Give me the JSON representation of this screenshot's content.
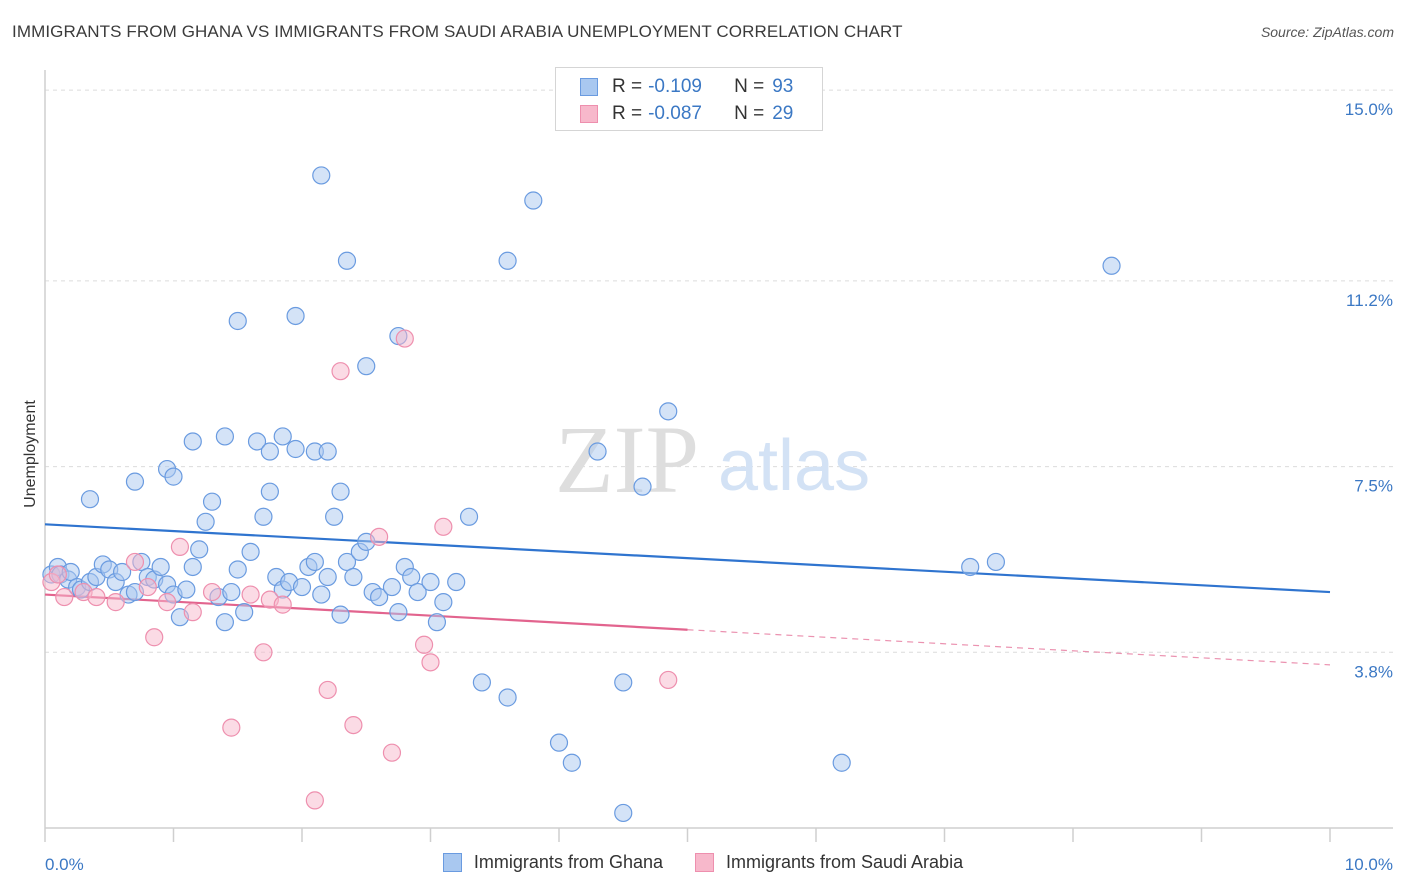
{
  "title": "IMMIGRANTS FROM GHANA VS IMMIGRANTS FROM SAUDI ARABIA UNEMPLOYMENT CORRELATION CHART",
  "source": "Source: ZipAtlas.com",
  "watermark": {
    "zip": "ZIP",
    "atlas": "atlas"
  },
  "legend": {
    "rows": [
      {
        "r_label": "R =",
        "r_value": "-0.109",
        "n_label": "N =",
        "n_value": "93"
      },
      {
        "r_label": "R =",
        "r_value": "-0.087",
        "n_label": "N =",
        "n_value": "29"
      }
    ]
  },
  "colors": {
    "ghana_fill": "#a9c8f0",
    "ghana_stroke": "#6a9be0",
    "ghana_line": "#2f74cf",
    "saudi_fill": "#f7b8cb",
    "saudi_stroke": "#ee8fae",
    "saudi_line": "#e2648e",
    "grid": "#dcdcdc",
    "tick_label": "#3b78c4"
  },
  "chart_data": {
    "type": "scatter",
    "title": "IMMIGRANTS FROM GHANA VS IMMIGRANTS FROM SAUDI ARABIA UNEMPLOYMENT CORRELATION CHART",
    "xlabel": "",
    "ylabel": "Unemployment",
    "xlim": [
      0,
      10
    ],
    "ylim": [
      0.3,
      15.4
    ],
    "x_tick_labels": [
      "0.0%",
      "10.0%"
    ],
    "y_ticks": [
      {
        "value": 3.8,
        "label": "3.8%"
      },
      {
        "value": 7.5,
        "label": "7.5%"
      },
      {
        "value": 11.2,
        "label": "11.2%"
      },
      {
        "value": 15.0,
        "label": "15.0%"
      }
    ],
    "grid": true,
    "legend_position": "top-center",
    "series": [
      {
        "name": "Immigrants from Ghana",
        "r": -0.109,
        "n": 93,
        "trend": {
          "x0": 0,
          "y0": 6.35,
          "x1": 10,
          "y1": 5.0
        },
        "points": [
          [
            0.05,
            5.35
          ],
          [
            0.1,
            5.5
          ],
          [
            0.12,
            5.35
          ],
          [
            0.18,
            5.25
          ],
          [
            0.2,
            5.4
          ],
          [
            0.25,
            5.1
          ],
          [
            0.28,
            5.05
          ],
          [
            0.35,
            5.2
          ],
          [
            0.4,
            5.3
          ],
          [
            0.45,
            5.55
          ],
          [
            0.5,
            5.45
          ],
          [
            0.55,
            5.2
          ],
          [
            0.6,
            5.4
          ],
          [
            0.65,
            4.95
          ],
          [
            0.7,
            5.0
          ],
          [
            0.75,
            5.6
          ],
          [
            0.8,
            5.3
          ],
          [
            0.85,
            5.25
          ],
          [
            0.9,
            5.5
          ],
          [
            0.95,
            5.15
          ],
          [
            1.0,
            4.95
          ],
          [
            1.05,
            4.5
          ],
          [
            1.1,
            5.05
          ],
          [
            1.15,
            5.5
          ],
          [
            1.2,
            5.85
          ],
          [
            1.25,
            6.4
          ],
          [
            1.3,
            6.8
          ],
          [
            1.35,
            4.9
          ],
          [
            1.4,
            4.4
          ],
          [
            1.45,
            5.0
          ],
          [
            1.5,
            5.45
          ],
          [
            1.55,
            4.6
          ],
          [
            1.6,
            5.8
          ],
          [
            1.7,
            6.5
          ],
          [
            1.75,
            7.0
          ],
          [
            1.8,
            5.3
          ],
          [
            1.85,
            5.05
          ],
          [
            1.9,
            5.2
          ],
          [
            2.0,
            5.1
          ],
          [
            2.05,
            5.5
          ],
          [
            2.1,
            5.6
          ],
          [
            2.15,
            4.95
          ],
          [
            2.2,
            5.3
          ],
          [
            2.3,
            4.55
          ],
          [
            2.35,
            5.6
          ],
          [
            2.4,
            5.3
          ],
          [
            2.45,
            5.8
          ],
          [
            2.5,
            6.0
          ],
          [
            2.55,
            5.0
          ],
          [
            2.6,
            4.9
          ],
          [
            2.7,
            5.1
          ],
          [
            2.75,
            4.6
          ],
          [
            2.8,
            5.5
          ],
          [
            2.85,
            5.3
          ],
          [
            2.9,
            5.0
          ],
          [
            3.0,
            5.2
          ],
          [
            3.05,
            4.4
          ],
          [
            3.1,
            4.8
          ],
          [
            3.2,
            5.2
          ],
          [
            3.3,
            6.5
          ],
          [
            0.35,
            6.85
          ],
          [
            0.7,
            7.2
          ],
          [
            0.95,
            7.45
          ],
          [
            1.0,
            7.3
          ],
          [
            1.15,
            8.0
          ],
          [
            1.4,
            8.1
          ],
          [
            1.65,
            8.0
          ],
          [
            1.75,
            7.8
          ],
          [
            1.85,
            8.1
          ],
          [
            1.95,
            7.85
          ],
          [
            2.1,
            7.8
          ],
          [
            2.2,
            7.8
          ],
          [
            2.25,
            6.5
          ],
          [
            2.3,
            7.0
          ],
          [
            2.5,
            9.5
          ],
          [
            1.5,
            10.4
          ],
          [
            1.95,
            10.5
          ],
          [
            2.15,
            13.3
          ],
          [
            2.35,
            11.6
          ],
          [
            2.75,
            10.1
          ],
          [
            3.6,
            11.6
          ],
          [
            3.8,
            12.8
          ],
          [
            4.3,
            7.8
          ],
          [
            4.65,
            7.1
          ],
          [
            4.85,
            8.6
          ],
          [
            3.4,
            3.2
          ],
          [
            3.6,
            2.9
          ],
          [
            4.0,
            2.0
          ],
          [
            4.1,
            1.6
          ],
          [
            4.5,
            3.2
          ],
          [
            4.5,
            0.6
          ],
          [
            6.2,
            1.6
          ],
          [
            7.2,
            5.5
          ],
          [
            7.4,
            5.6
          ],
          [
            8.3,
            11.5
          ]
        ]
      },
      {
        "name": "Immigrants from Saudi Arabia",
        "r": -0.087,
        "n": 29,
        "trend": {
          "x0": 0,
          "y0": 4.95,
          "x1": 5,
          "y1": 4.25
        },
        "trend_dashed": {
          "x0": 5,
          "y0": 4.25,
          "x1": 10,
          "y1": 3.55
        },
        "points": [
          [
            0.05,
            5.2
          ],
          [
            0.15,
            4.9
          ],
          [
            0.3,
            5.0
          ],
          [
            0.4,
            4.9
          ],
          [
            0.55,
            4.8
          ],
          [
            0.7,
            5.6
          ],
          [
            0.8,
            5.1
          ],
          [
            0.85,
            4.1
          ],
          [
            0.95,
            4.8
          ],
          [
            1.05,
            5.9
          ],
          [
            1.15,
            4.6
          ],
          [
            1.3,
            5.0
          ],
          [
            1.45,
            2.3
          ],
          [
            1.6,
            4.95
          ],
          [
            1.7,
            3.8
          ],
          [
            1.75,
            4.85
          ],
          [
            1.85,
            4.75
          ],
          [
            2.1,
            0.85
          ],
          [
            2.2,
            3.05
          ],
          [
            2.3,
            9.4
          ],
          [
            2.4,
            2.35
          ],
          [
            2.6,
            6.1
          ],
          [
            2.7,
            1.8
          ],
          [
            2.8,
            10.05
          ],
          [
            2.95,
            3.95
          ],
          [
            3.0,
            3.6
          ],
          [
            3.1,
            6.3
          ],
          [
            4.85,
            3.25
          ],
          [
            0.1,
            5.35
          ]
        ]
      }
    ]
  },
  "bottom_legend": {
    "items": [
      {
        "label": "Immigrants from Ghana"
      },
      {
        "label": "Immigrants from Saudi Arabia"
      }
    ]
  }
}
